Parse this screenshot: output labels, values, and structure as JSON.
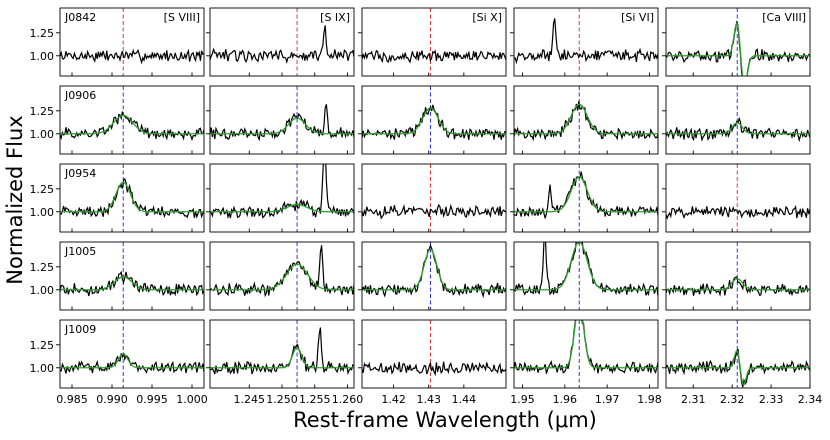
{
  "figure": {
    "ylabel": "Normalized Flux",
    "xlabel": "Rest-frame Wavelength (μm)",
    "colors": {
      "data": "#000000",
      "fit": "#2ca02c",
      "detected": "#1f1fd6",
      "nondetected": "#d62728"
    }
  },
  "chart_data": {
    "type": "line",
    "title": "",
    "xlabel": "Rest-frame Wavelength (μm)",
    "ylabel": "Normalized Flux",
    "objects": [
      "J0842",
      "J0906",
      "J0954",
      "J1005",
      "J1009"
    ],
    "columns": [
      {
        "line": "[S VIII]",
        "center": 0.9914,
        "xlim": [
          0.9835,
          1.0015
        ],
        "ticks": [
          "0.985",
          "0.990",
          "0.995",
          "1.000"
        ],
        "tick_values": [
          0.985,
          0.99,
          0.995,
          1.0
        ]
      },
      {
        "line": "[S IX]",
        "center": 1.2523,
        "xlim": [
          1.239,
          1.261
        ],
        "ticks": [
          "1.245",
          "1.250",
          "1.255",
          "1.260"
        ],
        "tick_values": [
          1.245,
          1.25,
          1.255,
          1.26
        ]
      },
      {
        "line": "[Si X]",
        "center": 1.4305,
        "xlim": [
          1.411,
          1.452
        ],
        "ticks": [
          "1.42",
          "1.43",
          "1.44"
        ],
        "tick_values": [
          1.42,
          1.43,
          1.44
        ]
      },
      {
        "line": "[Si VI]",
        "center": 1.9634,
        "xlim": [
          1.948,
          1.982
        ],
        "ticks": [
          "1.95",
          "1.96",
          "1.97",
          "1.98"
        ],
        "tick_values": [
          1.95,
          1.96,
          1.97,
          1.98
        ]
      },
      {
        "line": "[Ca VIII]",
        "center": 2.3213,
        "xlim": [
          2.303,
          2.34
        ],
        "ticks": [
          "2.31",
          "2.32",
          "2.33",
          "2.34"
        ],
        "tick_values": [
          2.31,
          2.32,
          2.33,
          2.34
        ]
      }
    ],
    "rows": [
      {
        "object": "J0842",
        "ylim": [
          0.78,
          1.52
        ],
        "yticks": [
          "1.00",
          "1.25"
        ],
        "ytick_values": [
          1.0,
          1.25
        ],
        "panels": [
          {
            "detected": false,
            "has_fit": false,
            "fit_amp": 0,
            "fit_sigma": 0,
            "data_peaks": []
          },
          {
            "detected": false,
            "has_fit": false,
            "fit_amp": 0,
            "fit_sigma": 0,
            "data_peaks": [
              {
                "x": 1.2565,
                "amp": 0.32
              }
            ]
          },
          {
            "detected": false,
            "has_fit": false,
            "fit_amp": 0,
            "fit_sigma": 0,
            "data_peaks": []
          },
          {
            "detected": false,
            "has_fit": false,
            "fit_amp": 0,
            "fit_sigma": 0,
            "data_peaks": [
              {
                "x": 1.9575,
                "amp": 0.38
              }
            ]
          },
          {
            "detected": true,
            "has_fit": true,
            "fit_amp": 0.38,
            "fit_sigma": 0.0008,
            "fit_dip": -0.35,
            "data_peaks": []
          }
        ]
      },
      {
        "object": "J0906",
        "ylim": [
          0.78,
          1.52
        ],
        "yticks": [
          "1.00",
          "1.25"
        ],
        "ytick_values": [
          1.0,
          1.25
        ],
        "panels": [
          {
            "detected": true,
            "has_fit": true,
            "fit_amp": 0.2,
            "fit_sigma": 0.0012,
            "data_peaks": []
          },
          {
            "detected": true,
            "has_fit": true,
            "fit_amp": 0.17,
            "fit_sigma": 0.0013,
            "data_peaks": [
              {
                "x": 1.2567,
                "amp": 0.35
              }
            ]
          },
          {
            "detected": true,
            "has_fit": true,
            "fit_amp": 0.28,
            "fit_sigma": 0.0022,
            "data_peaks": []
          },
          {
            "detected": true,
            "has_fit": true,
            "fit_amp": 0.32,
            "fit_sigma": 0.0019,
            "data_peaks": []
          },
          {
            "detected": true,
            "has_fit": true,
            "fit_amp": 0.12,
            "fit_sigma": 0.0013,
            "data_peaks": []
          }
        ]
      },
      {
        "object": "J0954",
        "ylim": [
          0.78,
          1.52
        ],
        "yticks": [
          "1.00",
          "1.25"
        ],
        "ytick_values": [
          1.0,
          1.25
        ],
        "panels": [
          {
            "detected": true,
            "has_fit": true,
            "fit_amp": 0.32,
            "fit_sigma": 0.0009,
            "data_peaks": []
          },
          {
            "detected": true,
            "has_fit": true,
            "fit_amp": 0.08,
            "fit_sigma": 0.0015,
            "data_peaks": [
              {
                "x": 1.2565,
                "amp": 0.75
              }
            ]
          },
          {
            "detected": false,
            "has_fit": false,
            "fit_amp": 0,
            "fit_sigma": 0,
            "data_peaks": []
          },
          {
            "detected": true,
            "has_fit": true,
            "fit_amp": 0.38,
            "fit_sigma": 0.0019,
            "data_peaks": [
              {
                "x": 1.9565,
                "amp": 0.28
              }
            ]
          },
          {
            "detected": false,
            "has_fit": false,
            "fit_amp": 0,
            "fit_sigma": 0,
            "data_peaks": []
          }
        ]
      },
      {
        "object": "J1005",
        "ylim": [
          0.78,
          1.52
        ],
        "yticks": [
          "1.00",
          "1.25"
        ],
        "ytick_values": [
          1.0,
          1.25
        ],
        "panels": [
          {
            "detected": true,
            "has_fit": true,
            "fit_amp": 0.14,
            "fit_sigma": 0.0011,
            "data_peaks": []
          },
          {
            "detected": true,
            "has_fit": true,
            "fit_amp": 0.28,
            "fit_sigma": 0.0016,
            "data_peaks": [
              {
                "x": 1.256,
                "amp": 0.48
              }
            ]
          },
          {
            "detected": true,
            "has_fit": true,
            "fit_amp": 0.44,
            "fit_sigma": 0.0018,
            "data_peaks": []
          },
          {
            "detected": true,
            "has_fit": true,
            "fit_amp": 0.52,
            "fit_sigma": 0.0019,
            "data_peaks": [
              {
                "x": 1.9553,
                "amp": 0.58
              }
            ]
          },
          {
            "detected": true,
            "has_fit": true,
            "fit_amp": 0.12,
            "fit_sigma": 0.0014,
            "data_peaks": []
          }
        ]
      },
      {
        "object": "J1009",
        "ylim": [
          0.78,
          1.52
        ],
        "yticks": [
          "1.00",
          "1.25"
        ],
        "ytick_values": [
          1.0,
          1.25
        ],
        "panels": [
          {
            "detected": true,
            "has_fit": true,
            "fit_amp": 0.15,
            "fit_sigma": 0.0006,
            "data_peaks": []
          },
          {
            "detected": true,
            "has_fit": true,
            "fit_amp": 0.22,
            "fit_sigma": 0.0007,
            "data_peaks": [
              {
                "x": 1.2558,
                "amp": 0.45
              }
            ]
          },
          {
            "detected": false,
            "has_fit": false,
            "fit_amp": 0,
            "fit_sigma": 0,
            "data_peaks": []
          },
          {
            "detected": true,
            "has_fit": true,
            "fit_amp": 0.68,
            "fit_sigma": 0.0011,
            "data_peaks": []
          },
          {
            "detected": true,
            "has_fit": true,
            "fit_amp": 0.2,
            "fit_sigma": 0.0007,
            "fit_dip": -0.2,
            "data_peaks": []
          }
        ]
      }
    ]
  }
}
